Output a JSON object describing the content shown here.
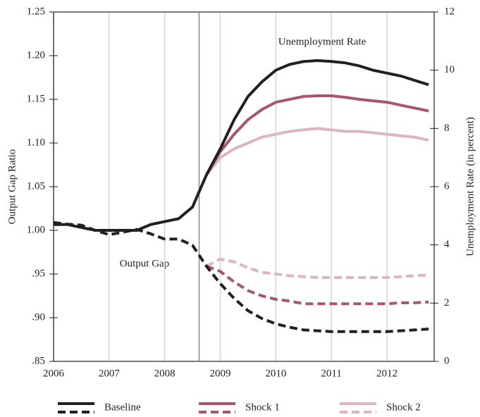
{
  "chart_data": {
    "type": "line",
    "ylabel": "Output Gap Ratio",
    "y2label": "Unemployment Rate (in percent)",
    "annotations": [
      "Unemployment Rate",
      "Output Gap"
    ],
    "xlim": [
      2006,
      2012.85
    ],
    "xticks": [
      2006,
      2007,
      2008,
      2009,
      2010,
      2011,
      2012
    ],
    "ylim": [
      0.85,
      1.25
    ],
    "yticks": [
      {
        "value": 0.85,
        "label": ".85"
      },
      {
        "value": 0.9,
        "label": ".90"
      },
      {
        "value": 0.95,
        "label": ".95"
      },
      {
        "value": 1.0,
        "label": "1.00"
      },
      {
        "value": 1.05,
        "label": "1.05"
      },
      {
        "value": 1.1,
        "label": "1.10"
      },
      {
        "value": 1.15,
        "label": "1.15"
      },
      {
        "value": 1.2,
        "label": "1.20"
      },
      {
        "value": 1.25,
        "label": "1.25"
      }
    ],
    "y2lim": [
      0,
      12
    ],
    "y2ticks": [
      0,
      2,
      4,
      6,
      8,
      10,
      12
    ],
    "grid": true,
    "vline_x": 2008.62,
    "x": [
      2006,
      2006.25,
      2006.5,
      2006.75,
      2007,
      2007.25,
      2007.5,
      2007.75,
      2008,
      2008.25,
      2008.5,
      2008.75,
      2009,
      2009.25,
      2009.5,
      2009.75,
      2010,
      2010.25,
      2010.5,
      2010.75,
      2011,
      2011.25,
      2011.5,
      2011.75,
      2012,
      2012.25,
      2012.5,
      2012.75
    ],
    "series": [
      {
        "name": "Baseline",
        "color": "#231f20",
        "values": [
          1.009,
          1.007,
          1.006,
          1.0,
          0.995,
          0.998,
          1.001,
          0.996,
          0.99,
          0.99,
          0.983,
          0.959,
          0.939,
          0.922,
          0.908,
          0.899,
          0.893,
          0.889,
          0.886,
          0.885,
          0.884,
          0.884,
          0.884,
          0.884,
          0.884,
          0.885,
          0.886,
          0.887
        ],
        "unemployment": [
          4.7,
          4.7,
          4.6,
          4.5,
          4.5,
          4.5,
          4.5,
          4.7,
          4.8,
          4.9,
          5.3,
          6.4,
          7.3,
          8.3,
          9.1,
          9.6,
          10.0,
          10.2,
          10.3,
          10.33,
          10.3,
          10.25,
          10.15,
          10.0,
          9.9,
          9.8,
          9.65,
          9.5
        ]
      },
      {
        "name": "Shock 1",
        "color": "#a8566d",
        "values": [
          null,
          null,
          null,
          null,
          null,
          null,
          null,
          null,
          null,
          null,
          null,
          0.959,
          0.953,
          0.941,
          0.931,
          0.925,
          0.921,
          0.919,
          0.916,
          0.916,
          0.916,
          0.916,
          0.916,
          0.916,
          0.916,
          0.917,
          0.917,
          0.918
        ],
        "unemployment": [
          null,
          null,
          null,
          null,
          null,
          null,
          null,
          null,
          null,
          null,
          null,
          6.4,
          7.2,
          7.8,
          8.3,
          8.65,
          8.9,
          9.0,
          9.1,
          9.12,
          9.12,
          9.07,
          9.0,
          8.95,
          8.9,
          8.8,
          8.7,
          8.6
        ]
      },
      {
        "name": "Shock 2",
        "color": "#ddb5bf",
        "values": [
          null,
          null,
          null,
          null,
          null,
          null,
          null,
          null,
          null,
          null,
          null,
          0.959,
          0.967,
          0.964,
          0.957,
          0.952,
          0.95,
          0.948,
          0.947,
          0.946,
          0.946,
          0.946,
          0.946,
          0.946,
          0.946,
          0.947,
          0.948,
          0.949
        ],
        "unemployment": [
          null,
          null,
          null,
          null,
          null,
          null,
          null,
          null,
          null,
          null,
          null,
          6.4,
          7.0,
          7.3,
          7.5,
          7.7,
          7.8,
          7.9,
          7.95,
          8.0,
          7.95,
          7.9,
          7.9,
          7.85,
          7.8,
          7.75,
          7.7,
          7.6
        ]
      }
    ]
  }
}
